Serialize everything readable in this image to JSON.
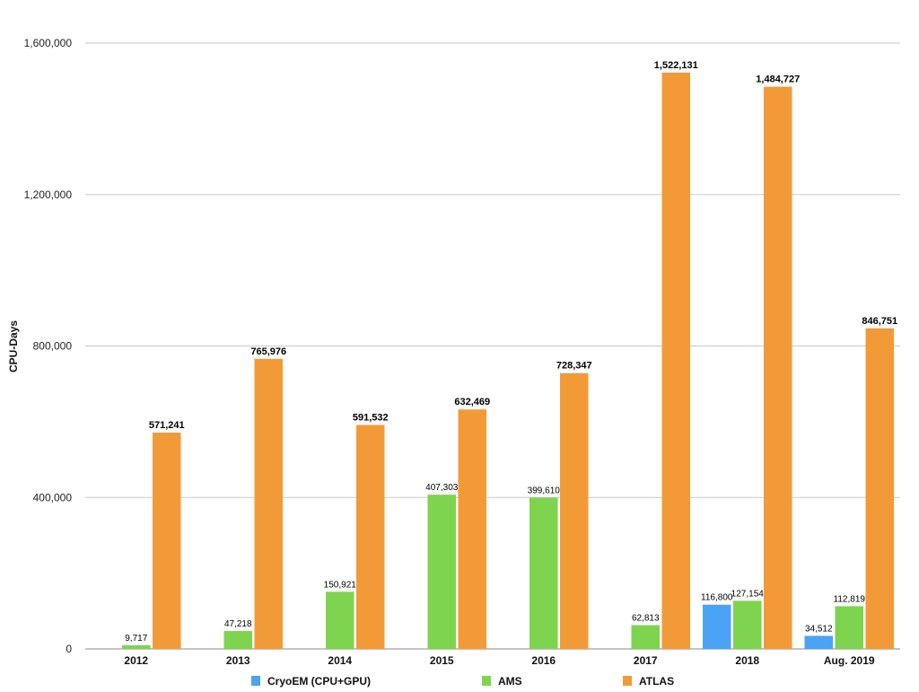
{
  "chart_data": {
    "type": "bar",
    "ylabel": "CPU-Days",
    "xlabel": "",
    "ylim": [
      0,
      1600000
    ],
    "yticks": [
      0,
      400000,
      800000,
      1200000,
      1600000
    ],
    "ytick_labels": [
      "0",
      "400,000",
      "800,000",
      "1,200,000",
      "1,600,000"
    ],
    "categories": [
      "2012",
      "2013",
      "2014",
      "2015",
      "2016",
      "2017",
      "2018",
      "Aug. 2019"
    ],
    "grid": true,
    "legend_position": "bottom",
    "series": [
      {
        "name": "CryoEM (CPU+GPU)",
        "color": "#4aa3f5",
        "label_color": "#1f3fd6",
        "values": [
          null,
          null,
          null,
          null,
          null,
          null,
          116800,
          34512
        ],
        "labels": [
          "",
          "",
          "",
          "",
          "",
          "",
          "116,800",
          "34,512"
        ]
      },
      {
        "name": "AMS",
        "color": "#7ed44e",
        "label_color": "#000000",
        "values": [
          9717,
          47218,
          150921,
          407303,
          399610,
          62813,
          127154,
          112819
        ],
        "labels": [
          "9,717",
          "47,218",
          "150,921",
          "407,303",
          "399,610",
          "62,813",
          "127,154",
          "112,819"
        ]
      },
      {
        "name": "ATLAS",
        "color": "#f39a38",
        "label_color": "#000000",
        "values": [
          571241,
          765976,
          591532,
          632469,
          728347,
          1522131,
          1484727,
          846751
        ],
        "labels": [
          "571,241",
          "765,976",
          "591,532",
          "632,469",
          "728,347",
          "1,522,131",
          "1,484,727",
          "846,751"
        ]
      }
    ]
  }
}
